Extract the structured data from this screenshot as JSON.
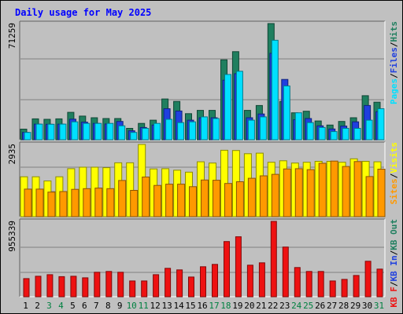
{
  "title": "Daily usage for May 2025",
  "colors": {
    "background": "#c0c0c0",
    "title": "#0000ff",
    "hits": "#1f7f5f",
    "files": "#1f3fdf",
    "pages": "#00e0ff",
    "visits": "#ffff00",
    "sites": "#ff9900",
    "kbytes": "#ee1111",
    "weekend_day": "#008040",
    "weekday": "#000000"
  },
  "chart_data": [
    {
      "type": "bar",
      "panel": "hits_files_pages",
      "ymax_label": "71259",
      "ylim": [
        0,
        71259
      ],
      "grid": true,
      "legend": [
        {
          "name": "Pages",
          "color": "#00e0ff"
        },
        {
          "name": "Files",
          "color": "#1f3fdf"
        },
        {
          "name": "Hits",
          "color": "#1f7f5f"
        }
      ],
      "series": [
        {
          "name": "Hits",
          "values": [
            6500,
            12800,
            12500,
            12800,
            16800,
            14500,
            13500,
            13000,
            13000,
            7000,
            10000,
            12000,
            25000,
            23500,
            16000,
            18000,
            18000,
            49000,
            54000,
            18000,
            21000,
            71259,
            23500,
            16500,
            17500,
            11500,
            9000,
            11200,
            13500,
            27000,
            23000
          ]
        },
        {
          "name": "Files",
          "values": [
            4500,
            9600,
            9500,
            9600,
            12600,
            10800,
            10000,
            9700,
            11200,
            5500,
            7500,
            9000,
            19000,
            17600,
            12000,
            13500,
            13500,
            36500,
            40500,
            13500,
            15800,
            53000,
            37000,
            12300,
            13000,
            8500,
            6600,
            8400,
            11000,
            21000,
            17200
          ]
        },
        {
          "name": "Pages",
          "values": [
            4500,
            9600,
            9500,
            9600,
            11000,
            10000,
            10000,
            10000,
            8500,
            4500,
            7000,
            10000,
            12500,
            10500,
            11000,
            14000,
            13000,
            40000,
            42000,
            12000,
            14000,
            61000,
            33000,
            16500,
            10500,
            7500,
            5000,
            7000,
            7000,
            12000,
            19000
          ]
        }
      ]
    },
    {
      "type": "bar",
      "panel": "visits_sites",
      "ymax_label": "2935",
      "ylim": [
        0,
        2935
      ],
      "grid": true,
      "legend": [
        {
          "name": "Sites",
          "color": "#ff9900"
        },
        {
          "name": "Visits",
          "color": "#ffff00"
        }
      ],
      "series": [
        {
          "name": "Visits",
          "values": [
            1620,
            1620,
            1450,
            1620,
            1950,
            2010,
            2010,
            1990,
            2190,
            2190,
            2935,
            1940,
            1950,
            1890,
            1810,
            2230,
            2180,
            2700,
            2690,
            2560,
            2580,
            2210,
            2270,
            2180,
            2210,
            2250,
            2250,
            2210,
            2350,
            2250,
            2230
          ]
        },
        {
          "name": "Sites",
          "values": [
            1120,
            1120,
            1000,
            1020,
            1110,
            1140,
            1160,
            1140,
            1470,
            1070,
            1610,
            1270,
            1320,
            1320,
            1220,
            1490,
            1480,
            1350,
            1420,
            1560,
            1660,
            1720,
            1940,
            1950,
            1910,
            2170,
            2260,
            2040,
            2240,
            1630,
            1930
          ]
        }
      ]
    },
    {
      "type": "bar",
      "panel": "kbytes",
      "ymax_label": "955339",
      "ylim": [
        0,
        955339
      ],
      "grid": true,
      "legend": [
        {
          "name": "KB F",
          "color": "#ee1111"
        },
        {
          "name": "KB In",
          "color": "#1f3fdf"
        },
        {
          "name": "KB Out",
          "color": "#1f7f5f"
        }
      ],
      "series": [
        {
          "name": "KB F",
          "values": [
            230000,
            260000,
            280000,
            255000,
            260000,
            240000,
            310000,
            320000,
            310000,
            200000,
            200000,
            280000,
            360000,
            340000,
            250000,
            380000,
            410000,
            700000,
            760000,
            400000,
            430000,
            955339,
            630000,
            370000,
            320000,
            320000,
            200000,
            220000,
            270000,
            450000,
            350000
          ]
        }
      ]
    }
  ],
  "days": [
    "1",
    "2",
    "3",
    "4",
    "5",
    "6",
    "7",
    "8",
    "9",
    "10",
    "11",
    "12",
    "13",
    "14",
    "15",
    "16",
    "17",
    "18",
    "19",
    "20",
    "21",
    "22",
    "23",
    "24",
    "25",
    "26",
    "27",
    "28",
    "29",
    "30",
    "31"
  ],
  "weekend_days": [
    "3",
    "4",
    "10",
    "11",
    "17",
    "18",
    "24",
    "25",
    "31"
  ]
}
